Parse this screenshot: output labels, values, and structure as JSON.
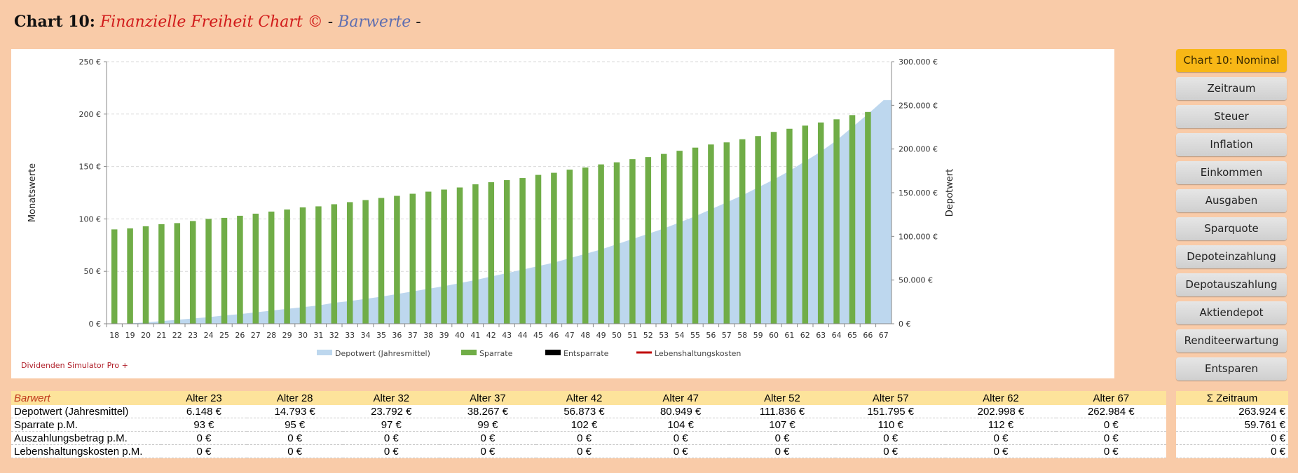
{
  "header": {
    "chart_no": "Chart 10:",
    "name": "Finanzielle Freiheit Chart ©",
    "sep1": "-",
    "mode": "Barwerte",
    "sep2": "-"
  },
  "brand": "Dividenden  Simulator  Pro  +",
  "colors": {
    "depot": "#bdd7ee",
    "sparrate": "#70ad47",
    "entsparrate": "#000000",
    "lebenshaltung": "#c00000",
    "active_button": "#f8b716"
  },
  "sidebar": {
    "buttons": [
      {
        "label": "Chart 10: Nominal",
        "active": true
      },
      {
        "label": "Zeitraum"
      },
      {
        "label": "Steuer"
      },
      {
        "label": "Inflation"
      },
      {
        "label": "Einkommen"
      },
      {
        "label": "Ausgaben"
      },
      {
        "label": "Sparquote"
      },
      {
        "label": "Depoteinzahlung"
      },
      {
        "label": "Depotauszahlung"
      },
      {
        "label": "Aktiendepot"
      },
      {
        "label": "Renditeerwartung"
      },
      {
        "label": "Entsparen"
      }
    ]
  },
  "chart_data": {
    "type": "bar",
    "title": "Finanzielle Freiheit Chart © - Barwerte",
    "xlabel": "",
    "ylabel": "Monatswerte",
    "y2label": "Depotwert",
    "ylim": [
      0,
      250
    ],
    "y2lim": [
      0,
      300000
    ],
    "yticks": [
      "0 €",
      "50 €",
      "100 €",
      "150 €",
      "200 €",
      "250 €"
    ],
    "y2ticks": [
      "0 €",
      "50.000 €",
      "100.000 €",
      "150.000 €",
      "200.000 €",
      "250.000 €",
      "300.000 €"
    ],
    "grid": true,
    "legend_position": "bottom",
    "categories": [
      "18",
      "19",
      "20",
      "21",
      "22",
      "23",
      "24",
      "25",
      "26",
      "27",
      "28",
      "29",
      "30",
      "31",
      "32",
      "33",
      "34",
      "35",
      "36",
      "37",
      "38",
      "39",
      "40",
      "41",
      "42",
      "43",
      "44",
      "45",
      "46",
      "47",
      "48",
      "49",
      "50",
      "51",
      "52",
      "53",
      "54",
      "55",
      "56",
      "57",
      "58",
      "59",
      "60",
      "61",
      "62",
      "63",
      "64",
      "65",
      "66",
      "67"
    ],
    "series": [
      {
        "name": "Depotwert (Jahresmittel)",
        "type": "area",
        "axis": "right",
        "values": [
          0,
          500,
          1500,
          3000,
          4500,
          6000,
          7500,
          9500,
          11000,
          13000,
          15000,
          17000,
          19000,
          21000,
          24000,
          26000,
          28500,
          31000,
          34000,
          37000,
          40000,
          43000,
          46500,
          50000,
          54000,
          58000,
          62000,
          66000,
          70000,
          75000,
          80000,
          85000,
          91000,
          97000,
          103000,
          109000,
          116000,
          123000,
          131000,
          139000,
          147000,
          156000,
          165000,
          175000,
          186000,
          197000,
          210000,
          225000,
          240000,
          256000
        ]
      },
      {
        "name": "Sparrate",
        "type": "bar",
        "axis": "left",
        "values": [
          90,
          91,
          93,
          95,
          96,
          98,
          100,
          101,
          103,
          105,
          107,
          109,
          111,
          112,
          114,
          116,
          118,
          120,
          122,
          124,
          126,
          128,
          130,
          133,
          135,
          137,
          139,
          142,
          144,
          147,
          149,
          152,
          154,
          157,
          159,
          162,
          165,
          168,
          171,
          173,
          176,
          179,
          183,
          186,
          189,
          192,
          195,
          199,
          202,
          0
        ]
      },
      {
        "name": "Entsparrate",
        "type": "bar",
        "axis": "left",
        "values": []
      },
      {
        "name": "Lebenshaltungskosten",
        "type": "line",
        "axis": "left",
        "values": []
      }
    ]
  },
  "table": {
    "header_label": "Barwert",
    "columns": [
      "Alter 23",
      "Alter 28",
      "Alter 32",
      "Alter 37",
      "Alter 42",
      "Alter 47",
      "Alter 52",
      "Alter 57",
      "Alter 62",
      "Alter 67"
    ],
    "rows": [
      {
        "label": "Depotwert (Jahresmittel)",
        "values": [
          "6.148 €",
          "14.793 €",
          "23.792 €",
          "38.267 €",
          "56.873 €",
          "80.949 €",
          "111.836 €",
          "151.795 €",
          "202.998 €",
          "262.984 €"
        ]
      },
      {
        "label": "Sparrate p.M.",
        "values": [
          "93 €",
          "95 €",
          "97 €",
          "99 €",
          "102 €",
          "104 €",
          "107 €",
          "110 €",
          "112 €",
          "0 €"
        ]
      },
      {
        "label": "Auszahlungsbetrag p.M.",
        "values": [
          "0 €",
          "0 €",
          "0 €",
          "0 €",
          "0 €",
          "0 €",
          "0 €",
          "0 €",
          "0 €",
          "0 €"
        ]
      },
      {
        "label": "Lebenshaltungskosten p.M.",
        "values": [
          "0 €",
          "0 €",
          "0 €",
          "0 €",
          "0 €",
          "0 €",
          "0 €",
          "0 €",
          "0 €",
          "0 €"
        ]
      }
    ]
  },
  "summary": {
    "header": "Σ Zeitraum",
    "values": [
      "263.924 €",
      "59.761 €",
      "0 €",
      "0 €"
    ]
  }
}
